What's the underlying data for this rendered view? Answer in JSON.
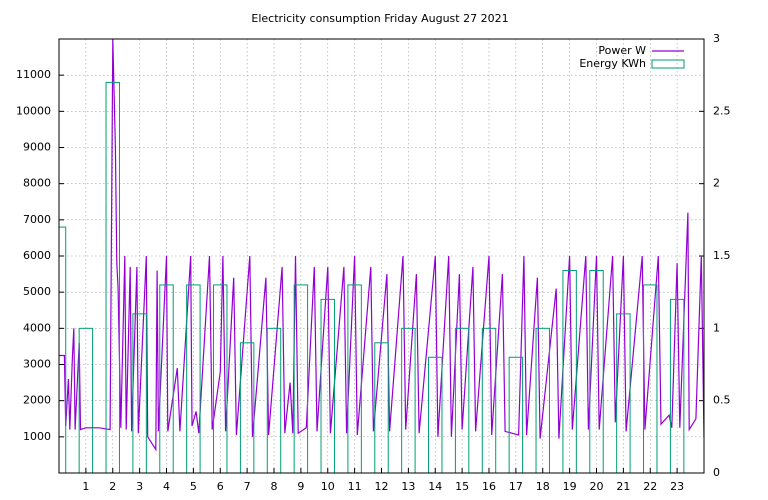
{
  "chart_data": {
    "type": "line",
    "title": "Electricity consumption Friday August 27 2021",
    "xlim": [
      0,
      24
    ],
    "xticks": [
      1,
      2,
      3,
      4,
      5,
      6,
      7,
      8,
      9,
      10,
      11,
      12,
      13,
      14,
      15,
      16,
      17,
      18,
      19,
      20,
      21,
      22,
      23
    ],
    "ylim": [
      0,
      12000
    ],
    "yticks": [
      1000,
      2000,
      3000,
      4000,
      5000,
      6000,
      7000,
      8000,
      9000,
      10000,
      11000
    ],
    "y2lim": [
      0,
      3
    ],
    "y2ticks": [
      0,
      0.5,
      1,
      1.5,
      2,
      2.5,
      3
    ],
    "grid": true,
    "legend": "top right",
    "series": [
      {
        "name": "Power W",
        "type": "line",
        "color": "#9400d3",
        "x": [
          0.0,
          0.2,
          0.25,
          0.35,
          0.4,
          0.5,
          0.55,
          0.6,
          0.75,
          0.8,
          1.0,
          1.5,
          1.9,
          2.0,
          2.1,
          2.15,
          2.2,
          2.3,
          2.45,
          2.5,
          2.65,
          2.7,
          2.9,
          2.95,
          3.25,
          3.3,
          3.6,
          3.65,
          3.7,
          4.0,
          4.05,
          4.4,
          4.5,
          4.9,
          4.95,
          5.1,
          5.2,
          5.6,
          5.7,
          6.0,
          6.1,
          6.2,
          6.5,
          6.6,
          7.1,
          7.2,
          7.7,
          7.8,
          8.3,
          8.4,
          8.6,
          8.7,
          8.8,
          8.9,
          9.2,
          9.5,
          9.6,
          10.0,
          10.1,
          10.6,
          10.7,
          11.0,
          11.1,
          11.6,
          11.7,
          12.2,
          12.3,
          12.8,
          12.9,
          13.3,
          13.4,
          14.0,
          14.1,
          14.5,
          14.6,
          14.9,
          15.0,
          15.4,
          15.5,
          16.0,
          16.1,
          16.5,
          16.6,
          17.1,
          17.3,
          17.4,
          17.8,
          17.9,
          18.5,
          18.6,
          19.0,
          19.1,
          19.6,
          19.7,
          20.0,
          20.1,
          20.6,
          20.7,
          21.0,
          21.1,
          21.7,
          21.8,
          22.3,
          22.4,
          22.7,
          22.8,
          23.0,
          23.1,
          23.4,
          23.45,
          23.7,
          23.9,
          24.0
        ],
        "values": [
          3250,
          3250,
          1300,
          2600,
          1200,
          3200,
          4000,
          1200,
          3600,
          1200,
          1250,
          1250,
          1200,
          12000,
          9000,
          5800,
          5100,
          1250,
          6000,
          1200,
          5700,
          1150,
          5700,
          1100,
          6000,
          1000,
          650,
          5600,
          1150,
          6000,
          1150,
          2900,
          1150,
          6000,
          1300,
          1700,
          1100,
          6000,
          1200,
          2800,
          6000,
          1150,
          5400,
          1050,
          6000,
          1000,
          5400,
          1050,
          5700,
          1100,
          2500,
          1100,
          6000,
          1100,
          1250,
          5700,
          1150,
          5700,
          1100,
          5700,
          1100,
          6000,
          1050,
          5700,
          1150,
          5500,
          1150,
          6000,
          1200,
          5500,
          1100,
          6000,
          1000,
          6000,
          1000,
          5500,
          1200,
          5700,
          1150,
          6000,
          1050,
          5500,
          1150,
          1050,
          6000,
          1050,
          5400,
          950,
          5100,
          950,
          6000,
          1200,
          6000,
          1200,
          6000,
          1200,
          6000,
          1400,
          6000,
          1150,
          6000,
          1200,
          6000,
          1350,
          1600,
          1250,
          5800,
          1250,
          7200,
          1200,
          1500,
          6000,
          1000
        ]
      },
      {
        "name": "Energy KWh",
        "type": "bar",
        "axis": "y2",
        "color": "#009e73",
        "x": [
          0,
          1,
          2,
          3,
          4,
          5,
          6,
          7,
          8,
          9,
          10,
          11,
          12,
          13,
          14,
          15,
          16,
          17,
          18,
          19,
          20,
          21,
          22,
          23
        ],
        "values": [
          1.7,
          1.0,
          2.7,
          1.1,
          1.3,
          1.3,
          1.3,
          0.9,
          1.0,
          1.3,
          1.2,
          1.3,
          0.9,
          1.0,
          0.8,
          1.0,
          1.0,
          0.8,
          1.0,
          1.4,
          1.4,
          1.1,
          1.3,
          1.2
        ]
      }
    ]
  }
}
